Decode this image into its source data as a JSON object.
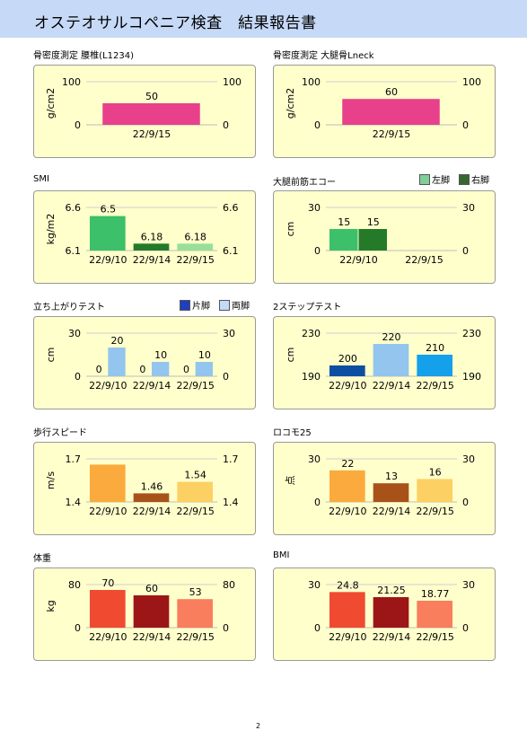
{
  "header": {
    "title": "オステオサルコペニア検査　結果報告書"
  },
  "page_number": "2",
  "panels": [
    {
      "title": "骨密度測定 腰椎(L1234)"
    },
    {
      "title": "骨密度測定 大腿骨Lneck"
    },
    {
      "title": "SMI"
    },
    {
      "title": "大腿前筋エコー",
      "legend": [
        {
          "label": "左脚",
          "color": "#7fcf97"
        },
        {
          "label": "右脚",
          "color": "#35682d"
        }
      ]
    },
    {
      "title": "立ち上がりテスト",
      "legend": [
        {
          "label": "片脚",
          "color": "#1f3fbf"
        },
        {
          "label": "両脚",
          "color": "#c5d9f8"
        }
      ]
    },
    {
      "title": "2ステップテスト"
    },
    {
      "title": "歩行スピード"
    },
    {
      "title": "ロコモ25"
    },
    {
      "title": "体重"
    },
    {
      "title": "BMI"
    }
  ],
  "chart_data": [
    {
      "type": "bar",
      "ylabel": "g/cm2",
      "ylim": [
        0,
        100
      ],
      "yticks": [
        "100",
        "0"
      ],
      "y2ticks": [
        "100",
        "0"
      ],
      "categories": [
        "22/9/15"
      ],
      "series": [
        {
          "values": [
            50
          ],
          "labels": [
            "50"
          ],
          "colors": [
            "#e8408a"
          ]
        }
      ]
    },
    {
      "type": "bar",
      "ylabel": "g/cm2",
      "ylim": [
        0,
        100
      ],
      "yticks": [
        "100",
        "0"
      ],
      "y2ticks": [
        "100",
        "0"
      ],
      "categories": [
        "22/9/15"
      ],
      "series": [
        {
          "values": [
            60
          ],
          "labels": [
            "60"
          ],
          "colors": [
            "#e8408a"
          ]
        }
      ]
    },
    {
      "type": "bar",
      "ylabel": "kg/m2",
      "ylim": [
        6.1,
        6.6
      ],
      "yticks": [
        "6.6",
        "6.1"
      ],
      "y2ticks": [
        "6.6",
        "6.1"
      ],
      "categories": [
        "22/9/10",
        "22/9/14",
        "22/9/15"
      ],
      "series": [
        {
          "values": [
            6.5,
            6.18,
            6.18
          ],
          "labels": [
            "6.5",
            "6.18",
            "6.18"
          ],
          "colors": [
            "#3cc06a",
            "#257a2a",
            "#99df99"
          ]
        }
      ]
    },
    {
      "type": "bar",
      "ylabel": "cm",
      "ylim": [
        0,
        30
      ],
      "yticks": [
        "30",
        "0"
      ],
      "y2ticks": [
        "30",
        "0"
      ],
      "categories": [
        "22/9/10",
        "22/9/15"
      ],
      "series": [
        {
          "name": "左脚",
          "values": [
            15,
            null
          ],
          "labels": [
            "15",
            ""
          ],
          "colors": [
            "#3cc06a",
            "#3cc06a"
          ]
        },
        {
          "name": "右脚",
          "values": [
            15,
            null
          ],
          "labels": [
            "15",
            ""
          ],
          "colors": [
            "#257a2a",
            "#257a2a"
          ]
        }
      ]
    },
    {
      "type": "bar",
      "ylabel": "cm",
      "ylim": [
        0,
        30
      ],
      "yticks": [
        "30",
        "0"
      ],
      "y2ticks": [
        "30",
        "0"
      ],
      "categories": [
        "22/9/10",
        "22/9/14",
        "22/9/15"
      ],
      "series": [
        {
          "name": "片脚",
          "values": [
            0,
            0,
            0
          ],
          "labels": [
            "0",
            "0",
            "0"
          ],
          "colors": [
            "#1f3fbf",
            "#1f3fbf",
            "#1f3fbf"
          ]
        },
        {
          "name": "両脚",
          "values": [
            20,
            10,
            10
          ],
          "labels": [
            "20",
            "10",
            "10"
          ],
          "colors": [
            "#93c5ee",
            "#93c5ee",
            "#93c5ee"
          ]
        }
      ]
    },
    {
      "type": "bar",
      "ylabel": "cm",
      "ylim": [
        190,
        230
      ],
      "yticks": [
        "230",
        "190"
      ],
      "y2ticks": [
        "230",
        "190"
      ],
      "categories": [
        "22/9/10",
        "22/9/14",
        "22/9/15"
      ],
      "series": [
        {
          "values": [
            200,
            220,
            210
          ],
          "labels": [
            "200",
            "220",
            "210"
          ],
          "colors": [
            "#0d4ea3",
            "#93c5ee",
            "#14a0ea"
          ]
        }
      ]
    },
    {
      "type": "bar",
      "ylabel": "m/s",
      "ylim": [
        1.4,
        1.7
      ],
      "yticks": [
        "1.7",
        "1.4"
      ],
      "y2ticks": [
        "1.7",
        "1.4"
      ],
      "categories": [
        "22/9/10",
        "22/9/14",
        "22/9/15"
      ],
      "series": [
        {
          "values": [
            1.66,
            1.46,
            1.54
          ],
          "labels": [
            "",
            "1.46",
            "1.54"
          ],
          "colors": [
            "#fbab3d",
            "#a8521a",
            "#fdd063"
          ]
        }
      ]
    },
    {
      "type": "bar",
      "ylabel": "点",
      "ylim": [
        0,
        30
      ],
      "yticks": [
        "30",
        "0"
      ],
      "y2ticks": [
        "30",
        "0"
      ],
      "categories": [
        "22/9/10",
        "22/9/14",
        "22/9/15"
      ],
      "series": [
        {
          "values": [
            22,
            13,
            16
          ],
          "labels": [
            "22",
            "13",
            "16"
          ],
          "colors": [
            "#fbab3d",
            "#a8521a",
            "#fdd063"
          ]
        }
      ]
    },
    {
      "type": "bar",
      "ylabel": "kg",
      "ylim": [
        0,
        80
      ],
      "yticks": [
        "80",
        "0"
      ],
      "y2ticks": [
        "80",
        "0"
      ],
      "categories": [
        "22/9/10",
        "22/9/14",
        "22/9/15"
      ],
      "series": [
        {
          "values": [
            70,
            60,
            53
          ],
          "labels": [
            "70",
            "60",
            "53"
          ],
          "colors": [
            "#f04a30",
            "#9c1618",
            "#f87e5d"
          ]
        }
      ]
    },
    {
      "type": "bar",
      "ylabel": "",
      "ylim": [
        0,
        30
      ],
      "yticks": [
        "30",
        "0"
      ],
      "y2ticks": [
        "30",
        "0"
      ],
      "categories": [
        "22/9/10",
        "22/9/14",
        "22/9/15"
      ],
      "series": [
        {
          "values": [
            24.8,
            21.25,
            18.77
          ],
          "labels": [
            "24.8",
            "21.25",
            "18.77"
          ],
          "colors": [
            "#f04a30",
            "#9c1618",
            "#f87e5d"
          ]
        }
      ]
    }
  ]
}
